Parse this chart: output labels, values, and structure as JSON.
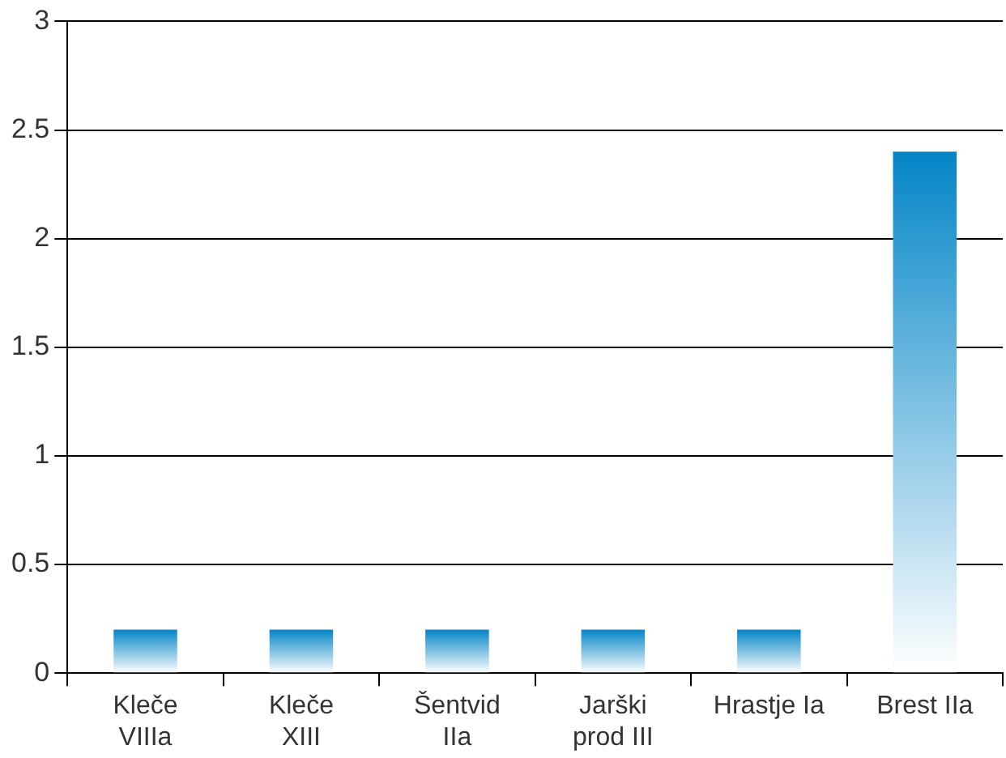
{
  "chart_data": {
    "type": "bar",
    "categories": [
      "Kleče\nVIIIa",
      "Kleče\nXIII",
      "Šentvid\nIIa",
      "Jarški\nprod III",
      "Hrastje Ia",
      "Brest IIa"
    ],
    "values": [
      0.2,
      0.2,
      0.2,
      0.2,
      0.2,
      2.4
    ],
    "color": "#0485c7",
    "ylim": [
      0,
      3
    ],
    "yticks": [
      0,
      0.5,
      1,
      1.5,
      2,
      2.5,
      3
    ],
    "grid": "y",
    "legend": false
  }
}
